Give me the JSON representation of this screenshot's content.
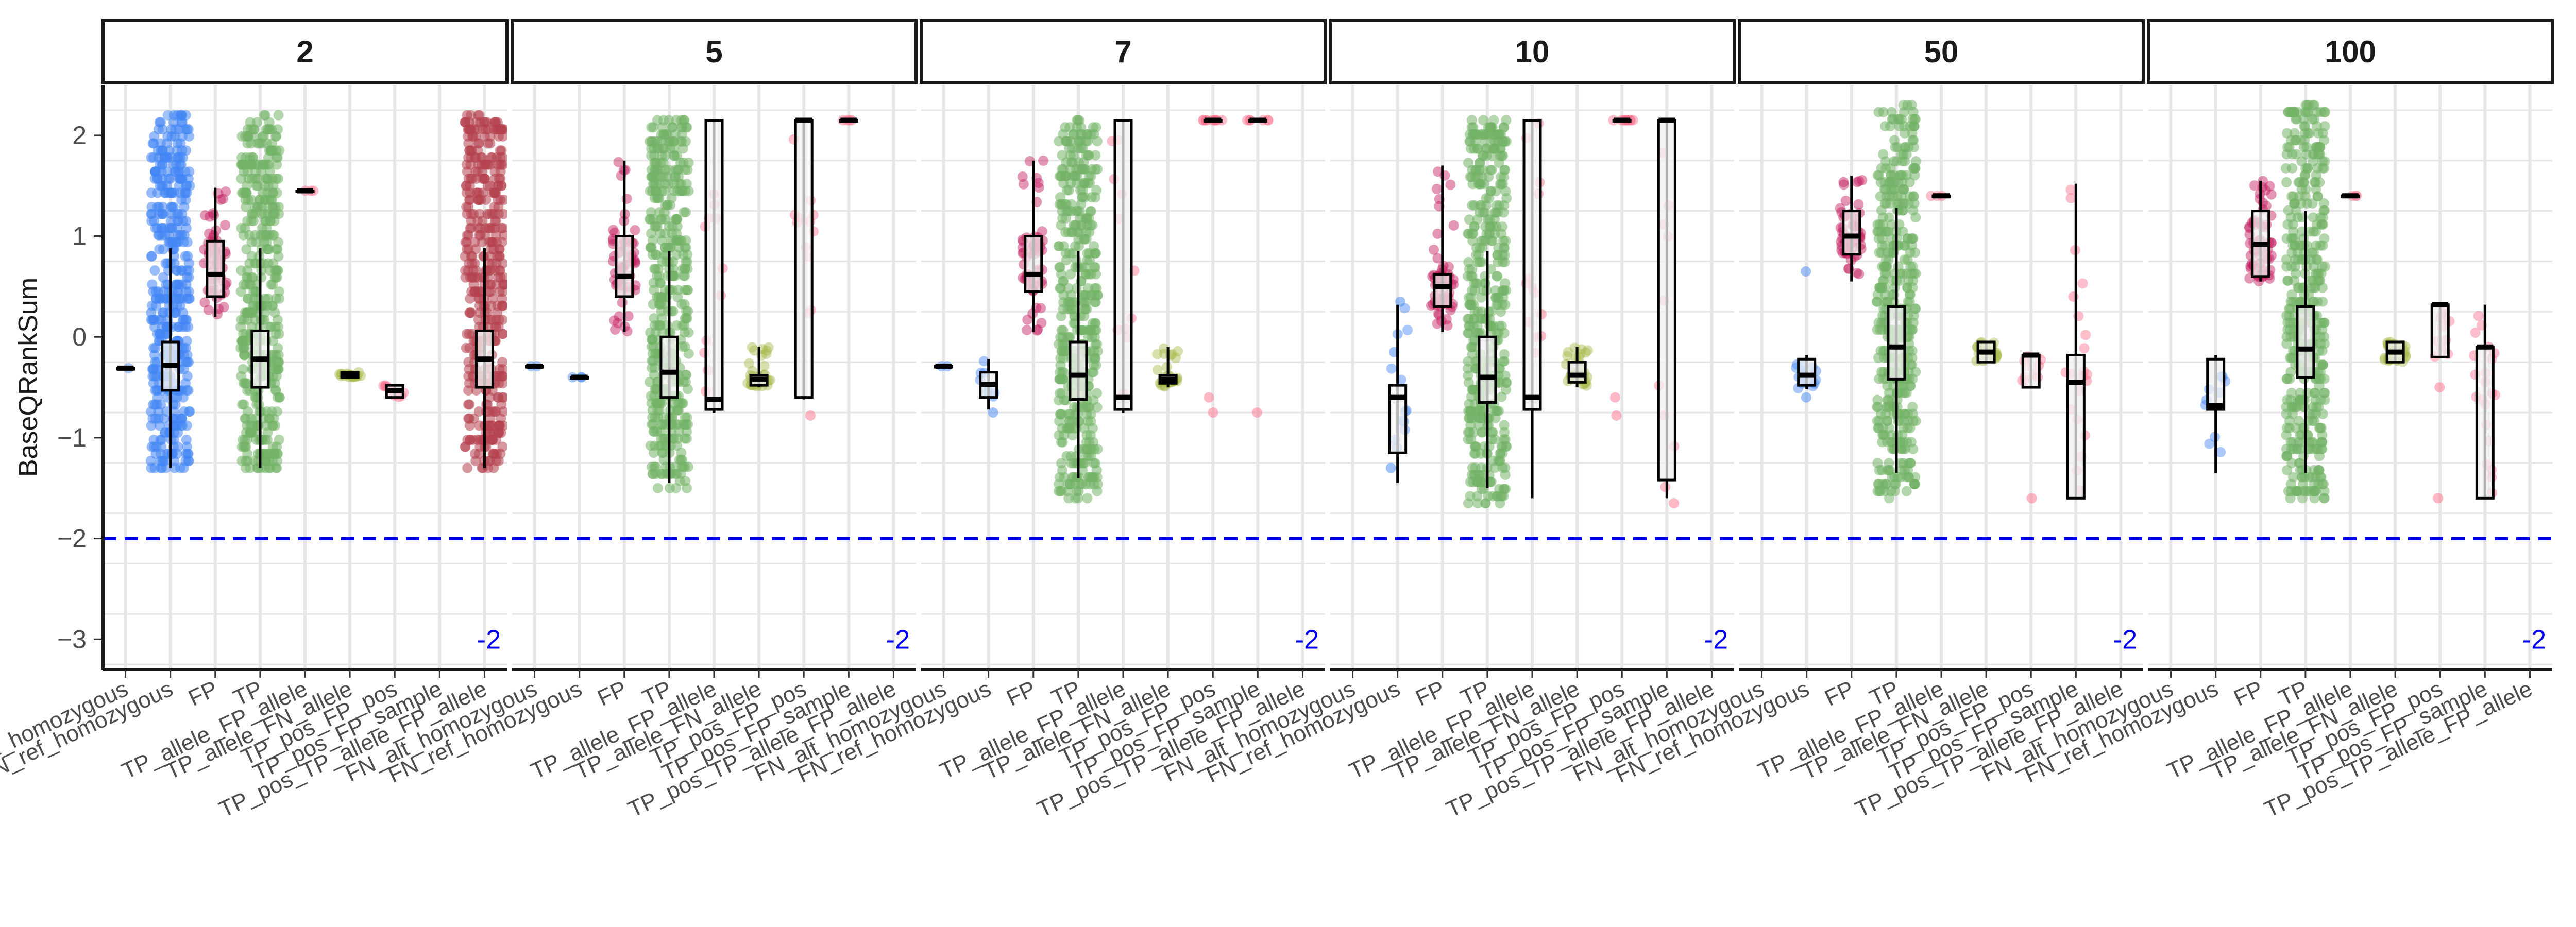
{
  "chart_data": {
    "type": "box",
    "title": "",
    "ylabel": "BaseQRankSum",
    "xlabel": "",
    "ylim": [
      -3.3,
      2.5
    ],
    "y_ticks": [
      2,
      1,
      0,
      -1,
      -2,
      -3
    ],
    "grid": true,
    "legend": "none",
    "reference_line": {
      "y": -2,
      "style": "dashed",
      "color": "#0000ee",
      "label": "-2"
    },
    "categories": [
      "FN_alt_homozygous",
      "FN_ref_homozygous",
      "FP",
      "TP",
      "TP_allele_FP_allele",
      "TP_allele_FN_allele",
      "TP_pos_FP_pos",
      "TP_pos_FP_sample",
      "TP_pos_TP_allele_FP_allele"
    ],
    "category_colors": [
      "#4285f4",
      "#4285f4",
      "#c2185b",
      "#72b266",
      "#fb6f8c",
      "#a6b84a",
      "#fb6f8c",
      "#fb6f8c",
      "#b5424f"
    ],
    "panels": [
      {
        "label": "2",
        "groups": [
          {
            "category": "FN_alt_homozygous",
            "min": -0.31,
            "q1": -0.31,
            "median": -0.31,
            "q3": -0.31,
            "max": -0.31,
            "n": 1
          },
          {
            "category": "FN_ref_homozygous",
            "min": -1.3,
            "q1": -0.53,
            "median": -0.28,
            "q3": -0.05,
            "max": 0.88,
            "outliers": [
              2.2,
              -1.3
            ],
            "n": 900
          },
          {
            "category": "FP",
            "min": 0.2,
            "q1": 0.4,
            "median": 0.62,
            "q3": 0.95,
            "max": 1.48,
            "n": 60
          },
          {
            "category": "TP",
            "min": -1.3,
            "q1": -0.5,
            "median": -0.22,
            "q3": 0.06,
            "max": 0.88,
            "outliers": [
              2.2,
              -1.3
            ],
            "n": 1500
          },
          {
            "category": "TP_allele_FP_allele",
            "min": 1.45,
            "q1": 1.45,
            "median": 1.45,
            "q3": 1.45,
            "max": 1.45,
            "n": 3
          },
          {
            "category": "TP_allele_FN_allele",
            "min": -0.4,
            "q1": -0.4,
            "median": -0.37,
            "q3": -0.35,
            "max": -0.35,
            "n": 20
          },
          {
            "category": "TP_pos_FP_pos",
            "min": -0.6,
            "q1": -0.6,
            "median": -0.53,
            "q3": -0.48,
            "max": -0.48,
            "n": 10
          },
          {
            "category": "TP_pos_FP_sample",
            "min": null,
            "q1": null,
            "median": null,
            "q3": null,
            "max": null,
            "n": 0
          },
          {
            "category": "TP_pos_TP_allele_FP_allele",
            "min": -1.3,
            "q1": -0.5,
            "median": -0.22,
            "q3": 0.06,
            "max": 0.88,
            "outliers": [
              2.2,
              -1.3
            ],
            "n": 900
          }
        ]
      },
      {
        "label": "5",
        "groups": [
          {
            "category": "FN_alt_homozygous",
            "min": -0.29,
            "q1": -0.29,
            "median": -0.29,
            "q3": -0.29,
            "max": -0.29,
            "n": 2
          },
          {
            "category": "FN_ref_homozygous",
            "min": -0.4,
            "q1": -0.4,
            "median": -0.4,
            "q3": -0.4,
            "max": -0.4,
            "n": 3
          },
          {
            "category": "FP",
            "min": 0.05,
            "q1": 0.4,
            "median": 0.6,
            "q3": 1.0,
            "max": 1.75,
            "n": 60
          },
          {
            "category": "TP",
            "min": -1.45,
            "q1": -0.6,
            "median": -0.35,
            "q3": 0.0,
            "max": 0.85,
            "outliers": [
              2.15,
              -1.5
            ],
            "n": 1500
          },
          {
            "category": "TP_allele_FP_allele",
            "min": -0.75,
            "q1": -0.72,
            "median": -0.62,
            "q3": 2.15,
            "max": 2.15,
            "outliers": [
              1.42
            ],
            "n": 10
          },
          {
            "category": "TP_allele_FN_allele",
            "min": -0.5,
            "q1": -0.48,
            "median": -0.42,
            "q3": -0.38,
            "max": -0.1,
            "n": 30
          },
          {
            "category": "TP_pos_FP_pos",
            "min": -0.62,
            "q1": -0.6,
            "median": 2.15,
            "q3": 2.15,
            "max": 2.15,
            "outliers": [
              -0.78
            ],
            "n": 12
          },
          {
            "category": "TP_pos_FP_sample",
            "min": 2.15,
            "q1": 2.15,
            "median": 2.15,
            "q3": 2.15,
            "max": 2.15,
            "n": 4
          },
          {
            "category": "TP_pos_TP_allele_FP_allele",
            "min": null,
            "q1": null,
            "median": null,
            "q3": null,
            "max": null,
            "n": 0
          }
        ]
      },
      {
        "label": "7",
        "groups": [
          {
            "category": "FN_alt_homozygous",
            "min": -0.29,
            "q1": -0.29,
            "median": -0.29,
            "q3": -0.29,
            "max": -0.29,
            "n": 2
          },
          {
            "category": "FN_ref_homozygous",
            "min": -0.72,
            "q1": -0.6,
            "median": -0.47,
            "q3": -0.35,
            "max": -0.22,
            "outliers": [
              -0.75
            ],
            "n": 8
          },
          {
            "category": "FP",
            "min": 0.05,
            "q1": 0.45,
            "median": 0.62,
            "q3": 1.0,
            "max": 1.75,
            "n": 60
          },
          {
            "category": "TP",
            "min": -1.4,
            "q1": -0.62,
            "median": -0.38,
            "q3": -0.05,
            "max": 0.85,
            "outliers": [
              2.15,
              -1.6
            ],
            "n": 1500
          },
          {
            "category": "TP_allele_FP_allele",
            "min": -0.75,
            "q1": -0.72,
            "median": -0.6,
            "q3": 2.15,
            "max": 2.15,
            "outliers": [
              1.42
            ],
            "n": 10
          },
          {
            "category": "TP_allele_FN_allele",
            "min": -0.5,
            "q1": -0.46,
            "median": -0.42,
            "q3": -0.38,
            "max": -0.1,
            "n": 30
          },
          {
            "category": "TP_pos_FP_pos",
            "min": 2.15,
            "q1": 2.15,
            "median": 2.15,
            "q3": 2.15,
            "max": 2.15,
            "outliers": [
              -0.6,
              -0.75
            ],
            "n": 10
          },
          {
            "category": "TP_pos_FP_sample",
            "min": 2.15,
            "q1": 2.15,
            "median": 2.15,
            "q3": 2.15,
            "max": 2.15,
            "outliers": [
              -0.75
            ],
            "n": 6
          },
          {
            "category": "TP_pos_TP_allele_FP_allele",
            "min": null,
            "q1": null,
            "median": null,
            "q3": null,
            "max": null,
            "n": 0
          }
        ]
      },
      {
        "label": "10",
        "groups": [
          {
            "category": "FN_alt_homozygous",
            "min": null,
            "q1": null,
            "median": null,
            "q3": null,
            "max": null,
            "n": 0
          },
          {
            "category": "FN_ref_homozygous",
            "min": -1.45,
            "q1": -1.15,
            "median": -0.6,
            "q3": -0.48,
            "max": 0.32,
            "outliers": [
              -1.3,
              -0.15,
              0.35
            ],
            "n": 12
          },
          {
            "category": "FP",
            "min": 0.05,
            "q1": 0.3,
            "median": 0.5,
            "q3": 0.62,
            "max": 1.7,
            "n": 60
          },
          {
            "category": "TP",
            "min": -1.5,
            "q1": -0.65,
            "median": -0.4,
            "q3": 0.0,
            "max": 0.85,
            "outliers": [
              2.15,
              -1.65
            ],
            "n": 1500
          },
          {
            "category": "TP_allele_FP_allele",
            "min": -1.6,
            "q1": -0.72,
            "median": -0.6,
            "q3": 2.15,
            "max": 2.15,
            "outliers": [
              1.42
            ],
            "n": 12
          },
          {
            "category": "TP_allele_FN_allele",
            "min": -0.5,
            "q1": -0.45,
            "median": -0.38,
            "q3": -0.25,
            "max": -0.1,
            "n": 30
          },
          {
            "category": "TP_pos_FP_pos",
            "min": 2.15,
            "q1": 2.15,
            "median": 2.15,
            "q3": 2.15,
            "max": 2.15,
            "outliers": [
              -0.6,
              -0.78
            ],
            "n": 10
          },
          {
            "category": "TP_pos_FP_sample",
            "min": -1.6,
            "q1": -1.42,
            "median": 2.15,
            "q3": 2.15,
            "max": 2.15,
            "outliers": [
              -0.78,
              -1.65
            ],
            "n": 8
          },
          {
            "category": "TP_pos_TP_allele_FP_allele",
            "min": null,
            "q1": null,
            "median": null,
            "q3": null,
            "max": null,
            "n": 0
          }
        ]
      },
      {
        "label": "50",
        "groups": [
          {
            "category": "FN_alt_homozygous",
            "min": null,
            "q1": null,
            "median": null,
            "q3": null,
            "max": null,
            "n": 0
          },
          {
            "category": "FN_ref_homozygous",
            "min": -0.52,
            "q1": -0.48,
            "median": -0.38,
            "q3": -0.22,
            "max": -0.18,
            "outliers": [
              0.65,
              -0.6
            ],
            "n": 15
          },
          {
            "category": "FP",
            "min": 0.55,
            "q1": 0.82,
            "median": 1.0,
            "q3": 1.25,
            "max": 1.6,
            "n": 60
          },
          {
            "category": "TP",
            "min": -1.35,
            "q1": -0.42,
            "median": -0.1,
            "q3": 0.3,
            "max": 1.28,
            "outliers": [
              2.3,
              -1.6
            ],
            "n": 1500
          },
          {
            "category": "TP_allele_FP_allele",
            "min": 1.4,
            "q1": 1.4,
            "median": 1.4,
            "q3": 1.4,
            "max": 1.4,
            "n": 3
          },
          {
            "category": "TP_allele_FN_allele",
            "min": -0.25,
            "q1": -0.25,
            "median": -0.15,
            "q3": -0.05,
            "max": -0.05,
            "n": 30
          },
          {
            "category": "TP_pos_FP_pos",
            "min": -0.5,
            "q1": -0.5,
            "median": -0.18,
            "q3": -0.18,
            "max": -0.18,
            "outliers": [
              -1.6
            ],
            "n": 10
          },
          {
            "category": "TP_pos_FP_sample",
            "min": -1.6,
            "q1": -1.6,
            "median": -0.45,
            "q3": -0.18,
            "max": 1.52,
            "outliers": [
              0.4
            ],
            "n": 20
          },
          {
            "category": "TP_pos_TP_allele_FP_allele",
            "min": null,
            "q1": null,
            "median": null,
            "q3": null,
            "max": null,
            "n": 0
          }
        ]
      },
      {
        "label": "100",
        "groups": [
          {
            "category": "FN_alt_homozygous",
            "min": null,
            "q1": null,
            "median": null,
            "q3": null,
            "max": null,
            "n": 0
          },
          {
            "category": "FN_ref_homozygous",
            "min": -1.35,
            "q1": -0.72,
            "median": -0.68,
            "q3": -0.22,
            "max": -0.18,
            "n": 10
          },
          {
            "category": "FP",
            "min": 0.55,
            "q1": 0.6,
            "median": 0.92,
            "q3": 1.25,
            "max": 1.55,
            "n": 60
          },
          {
            "category": "TP",
            "min": -1.35,
            "q1": -0.4,
            "median": -0.12,
            "q3": 0.3,
            "max": 1.25,
            "outliers": [
              2.3,
              -1.6
            ],
            "n": 1500
          },
          {
            "category": "TP_allele_FP_allele",
            "min": 1.4,
            "q1": 1.4,
            "median": 1.4,
            "q3": 1.4,
            "max": 1.4,
            "n": 3
          },
          {
            "category": "TP_allele_FN_allele",
            "min": -0.25,
            "q1": -0.25,
            "median": -0.15,
            "q3": -0.05,
            "max": -0.05,
            "n": 30
          },
          {
            "category": "TP_pos_FP_pos",
            "min": -0.2,
            "q1": -0.2,
            "median": 0.32,
            "q3": 0.32,
            "max": 0.32,
            "outliers": [
              -0.5,
              -1.6
            ],
            "n": 10
          },
          {
            "category": "TP_pos_FP_sample",
            "min": -1.6,
            "q1": -1.6,
            "median": -0.1,
            "q3": -0.1,
            "max": 0.32,
            "outliers": [
              -0.45
            ],
            "n": 20
          },
          {
            "category": "TP_pos_TP_allele_FP_allele",
            "min": null,
            "q1": null,
            "median": null,
            "q3": null,
            "max": null,
            "n": 0
          }
        ]
      }
    ]
  }
}
